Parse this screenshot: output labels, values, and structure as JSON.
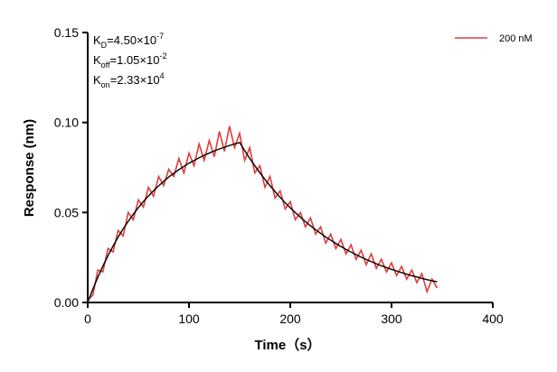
{
  "chart_data": {
    "type": "line",
    "xlabel": "Time（s）",
    "ylabel": "Response (nm)",
    "annotations": [
      {
        "text": "K",
        "sub": "D",
        "rest": "=4.50×10",
        "sup": "-7"
      },
      {
        "text": "K",
        "sub": "off",
        "rest": "=1.05×10",
        "sup": "-2"
      },
      {
        "text": "K",
        "sub": "on",
        "rest": "=2.33×10",
        "sup": "4"
      }
    ],
    "x": [
      0,
      5,
      10,
      15,
      20,
      25,
      30,
      35,
      40,
      45,
      50,
      55,
      60,
      65,
      70,
      75,
      80,
      85,
      90,
      95,
      100,
      105,
      110,
      115,
      120,
      125,
      130,
      135,
      140,
      145,
      150,
      155,
      160,
      165,
      170,
      175,
      180,
      185,
      190,
      195,
      200,
      205,
      210,
      215,
      220,
      225,
      230,
      235,
      240,
      245,
      250,
      255,
      260,
      265,
      270,
      275,
      280,
      285,
      290,
      295,
      300,
      305,
      310,
      315,
      320,
      325,
      330,
      335,
      340,
      345
    ],
    "series": [
      {
        "name": "200 nM",
        "color": "#e03c3c",
        "legend": true,
        "values": [
          0.0015,
          0.004,
          0.018,
          0.017,
          0.03,
          0.028,
          0.04,
          0.037,
          0.05,
          0.046,
          0.057,
          0.053,
          0.064,
          0.059,
          0.07,
          0.065,
          0.074,
          0.07,
          0.08,
          0.072,
          0.083,
          0.076,
          0.088,
          0.079,
          0.09,
          0.081,
          0.095,
          0.084,
          0.098,
          0.086,
          0.094,
          0.079,
          0.086,
          0.072,
          0.076,
          0.064,
          0.07,
          0.058,
          0.062,
          0.052,
          0.056,
          0.046,
          0.05,
          0.042,
          0.047,
          0.038,
          0.042,
          0.033,
          0.038,
          0.03,
          0.035,
          0.027,
          0.032,
          0.024,
          0.029,
          0.021,
          0.027,
          0.019,
          0.024,
          0.017,
          0.022,
          0.015,
          0.02,
          0.013,
          0.018,
          0.011,
          0.016,
          0.006,
          0.013,
          0.008
        ]
      },
      {
        "color": "#000000",
        "legend": false,
        "values": [
          0,
          0.0073,
          0.014,
          0.0202,
          0.026,
          0.0313,
          0.0363,
          0.0409,
          0.0451,
          0.049,
          0.0527,
          0.0561,
          0.0592,
          0.0621,
          0.0648,
          0.0673,
          0.0697,
          0.0718,
          0.0738,
          0.0756,
          0.0774,
          0.0789,
          0.0804,
          0.0818,
          0.083,
          0.0842,
          0.0853,
          0.0863,
          0.0872,
          0.0881,
          0.0889,
          0.0844,
          0.08,
          0.076,
          0.0721,
          0.0684,
          0.0649,
          0.0616,
          0.0584,
          0.0554,
          0.0526,
          0.0499,
          0.0474,
          0.0449,
          0.0426,
          0.0405,
          0.0384,
          0.0364,
          0.0346,
          0.0328,
          0.0311,
          0.0295,
          0.028,
          0.0266,
          0.0252,
          0.0239,
          0.0227,
          0.0215,
          0.0204,
          0.0194,
          0.0184,
          0.0175,
          0.0166,
          0.0157,
          0.0149,
          0.0142,
          0.0134,
          0.0127,
          0.0121,
          0.0115
        ]
      }
    ],
    "xlim": [
      0,
      400
    ],
    "xticks": [
      0,
      100,
      200,
      300,
      400
    ],
    "ylim": [
      0,
      0.15
    ],
    "yticks": [
      {
        "value": 0,
        "label": "0.00"
      },
      {
        "value": 0.05,
        "label": "0.05"
      },
      {
        "value": 0.1,
        "label": "0.10"
      },
      {
        "value": 0.15,
        "label": "0.15"
      }
    ],
    "legend_position": "top-right"
  }
}
